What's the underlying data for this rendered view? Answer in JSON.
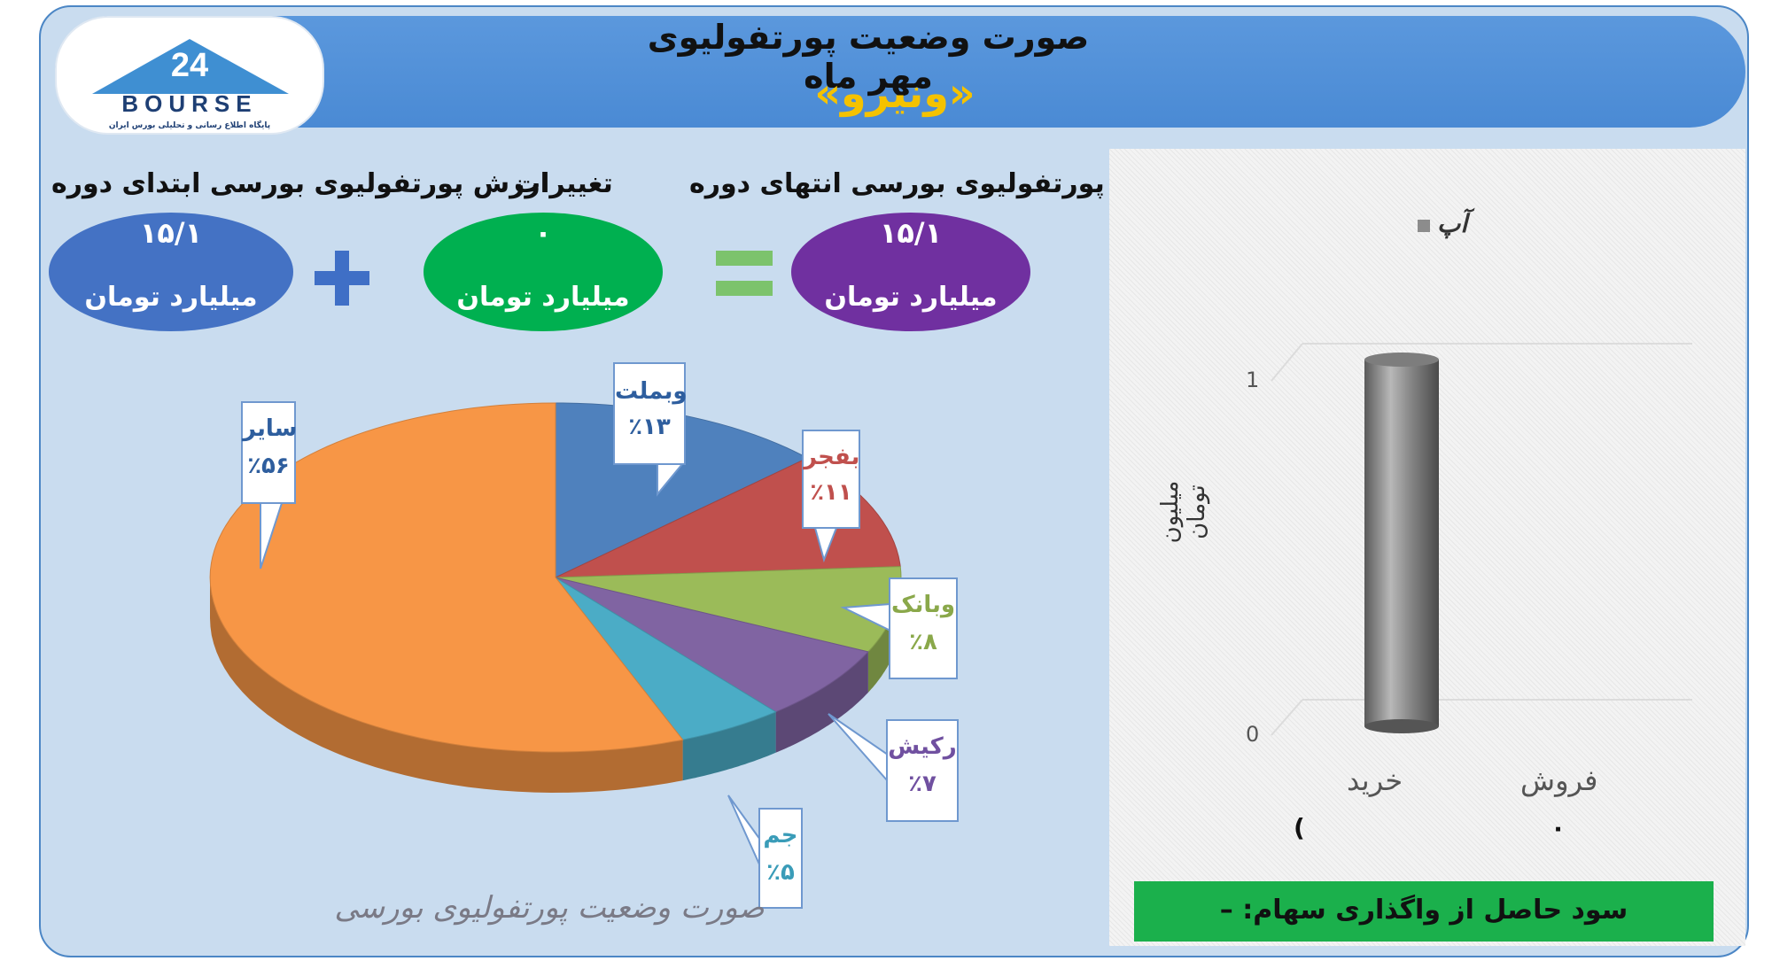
{
  "header": {
    "title": "صورت وضعیت پورتفولیوی مهر ماه",
    "fund": "«ونیرو»",
    "logo": {
      "text": "BOURSE",
      "number": "24",
      "tagline": "پایگاه اطلاع رسانی و تحلیلی بورس ایران"
    }
  },
  "summary": {
    "start": {
      "label": "ارزش پورتفولیوی بورسی ابتدای دوره",
      "value": "۱۵/۱",
      "unit": "میلیارد تومان",
      "color": "#4472c4"
    },
    "change": {
      "label": "تغییرات",
      "value": "۰",
      "unit": "میلیارد تومان",
      "color": "#00b050"
    },
    "end": {
      "label": "ارزش پورتفولیوی بورسی انتهای دوره",
      "value": "۱۵/۱",
      "unit": "میلیارد تومان",
      "color": "#7030a0"
    },
    "plus_icon": "plus-icon",
    "equals_icon": "equals-icon"
  },
  "pie_caption": "صورت وضعیت پورتفولیوی بورسی",
  "bar_caption": "سود حاصل از واگذاری سهام: –",
  "bar_values_text": {
    "buy": "(",
    "sell": "۰"
  },
  "chart_data": [
    {
      "type": "pie",
      "title": "",
      "slices": [
        {
          "name": "وبملت",
          "label": "٪۱۳",
          "value": 13,
          "color": "#4f81bd",
          "label_color": "#2e5e9e"
        },
        {
          "name": "بفجر",
          "label": "٪۱۱",
          "value": 11,
          "color": "#c0504d",
          "label_color": "#c0504d"
        },
        {
          "name": "وبانک",
          "label": "٪۸",
          "value": 8,
          "color": "#9bbb59",
          "label_color": "#8aa84a"
        },
        {
          "name": "رکیش",
          "label": "٪۷",
          "value": 7,
          "color": "#8064a2",
          "label_color": "#7050a0"
        },
        {
          "name": "جم",
          "label": "٪۵",
          "value": 5,
          "color": "#4bacc6",
          "label_color": "#3a9cb8"
        },
        {
          "name": "سایر",
          "label": "٪۵۶",
          "value": 56,
          "color": "#f79646",
          "label_color": "#2e5e9e"
        }
      ]
    },
    {
      "type": "bar",
      "title": "",
      "categories": [
        "خرید",
        "فروش"
      ],
      "series": [
        {
          "name": "آپ",
          "values": [
            1,
            0
          ]
        }
      ],
      "ylabel": "میلیون تومان",
      "ylim": [
        0,
        1
      ],
      "yticks": [
        "0",
        "1"
      ],
      "grid": true,
      "legend": "top",
      "bar_color": "#8c8c8c"
    }
  ]
}
